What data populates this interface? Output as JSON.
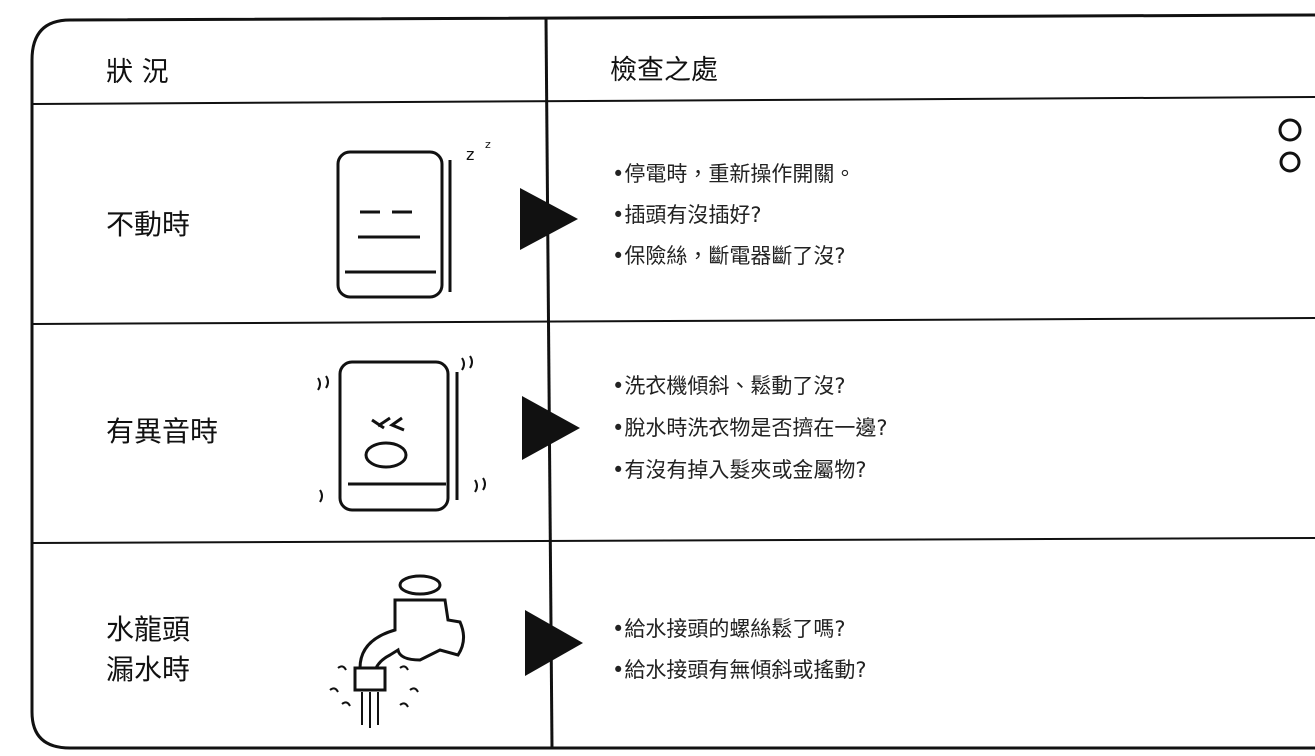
{
  "header": {
    "status": "狀 況",
    "checks": "檢查之處"
  },
  "rows": [
    {
      "status": [
        "不動時"
      ],
      "checks": [
        "•停電時，重新操作開關。",
        "•插頭有沒插好?",
        "•保險絲，斷電器斷了沒?"
      ]
    },
    {
      "status": [
        "有異音時"
      ],
      "checks": [
        "•洗衣機傾斜、鬆動了沒?",
        "•脫水時洗衣物是否擠在一邊?",
        "•有沒有掉入髮夾或金屬物?"
      ]
    },
    {
      "status": [
        "水龍頭",
        "漏水時"
      ],
      "checks": [
        "•給水接頭的螺絲鬆了嗎?",
        "•給水接頭有無傾斜或搖動?"
      ]
    }
  ]
}
